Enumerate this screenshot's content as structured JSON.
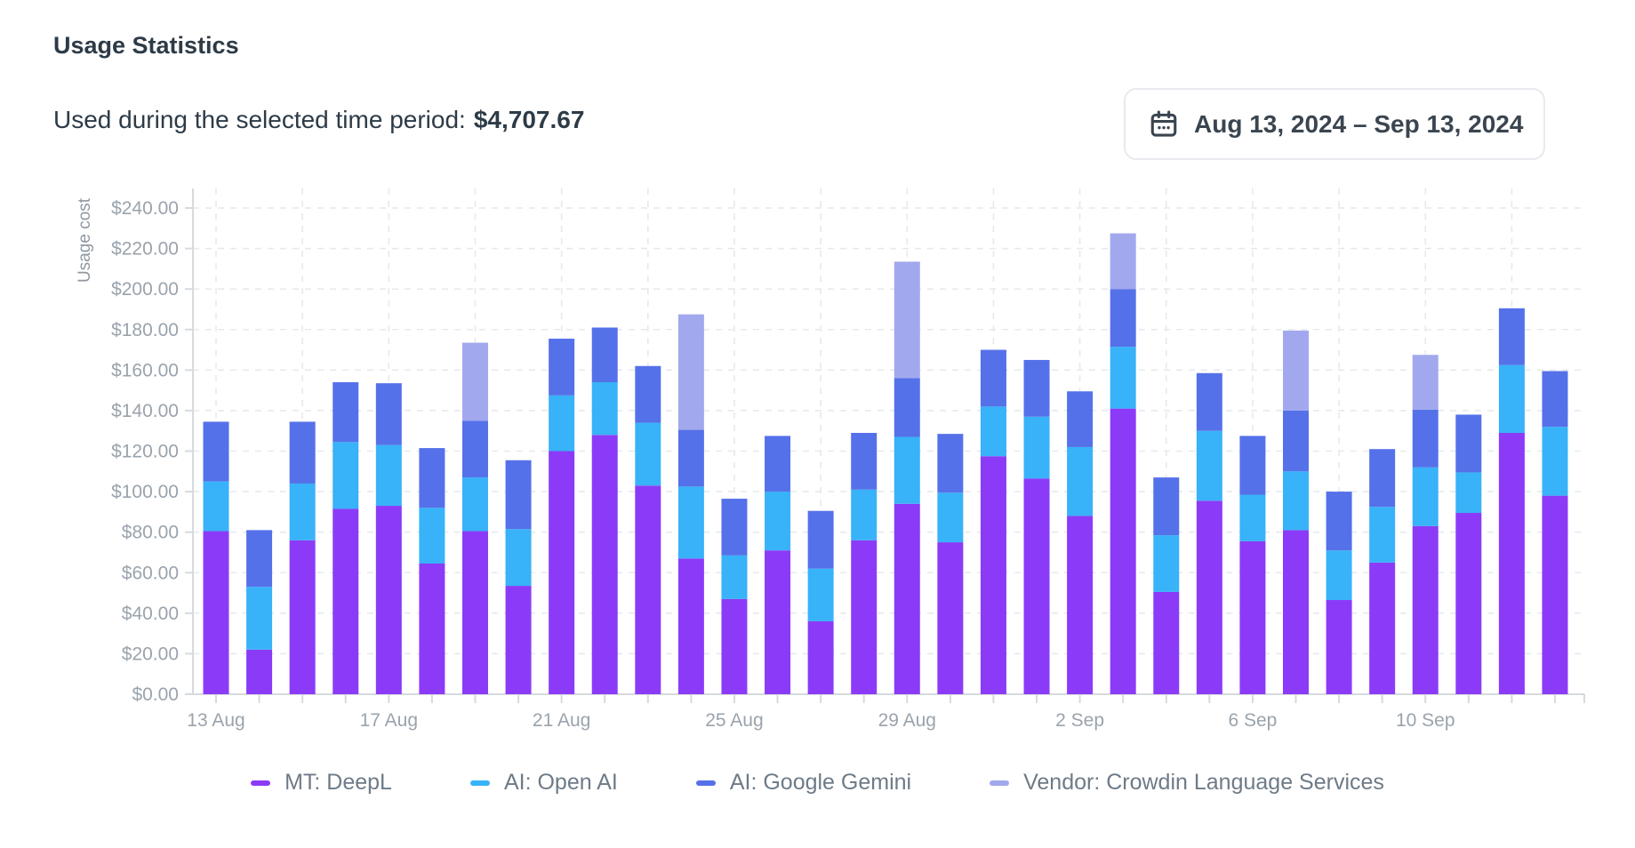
{
  "header": {
    "title": "Usage Statistics",
    "subtitle_label": "Used during the selected time period:",
    "subtitle_value": "$4,707.67"
  },
  "date_picker": {
    "icon": "calendar-icon",
    "label": "Aug 13, 2024 – Sep 13, 2024"
  },
  "chart_data": {
    "type": "bar",
    "stacked": true,
    "title": "",
    "xlabel": "",
    "ylabel": "Usage cost",
    "ylim": [
      0,
      250
    ],
    "y_tick_step": 20,
    "y_tick_labels": [
      "$0.00",
      "$20.00",
      "$40.00",
      "$60.00",
      "$80.00",
      "$100.00",
      "$120.00",
      "$140.00",
      "$160.00",
      "$180.00",
      "$200.00",
      "$220.00",
      "$240.00"
    ],
    "x_tick_labels_shown": [
      "13 Aug",
      "17 Aug",
      "21 Aug",
      "25 Aug",
      "29 Aug",
      "2 Sep",
      "6 Sep",
      "10 Sep"
    ],
    "grid": "dashed",
    "legend_position": "bottom",
    "categories": [
      "13 Aug",
      "14 Aug",
      "15 Aug",
      "16 Aug",
      "17 Aug",
      "18 Aug",
      "19 Aug",
      "20 Aug",
      "21 Aug",
      "22 Aug",
      "23 Aug",
      "24 Aug",
      "25 Aug",
      "26 Aug",
      "27 Aug",
      "28 Aug",
      "29 Aug",
      "30 Aug",
      "31 Aug",
      "1 Sep",
      "2 Sep",
      "3 Sep",
      "4 Sep",
      "5 Sep",
      "6 Sep",
      "7 Sep",
      "8 Sep",
      "9 Sep",
      "10 Sep",
      "11 Sep",
      "12 Sep",
      "13 Sep"
    ],
    "series": [
      {
        "name": "MT: DeepL",
        "color": "#8b3bf7",
        "values": [
          80.5,
          22,
          76,
          91.5,
          93,
          64.5,
          80.5,
          53.5,
          120,
          128,
          103,
          67,
          47,
          71,
          36,
          76,
          94,
          75,
          117.5,
          106.5,
          88,
          141,
          50.5,
          95.5,
          75.5,
          81,
          46.5,
          65,
          83,
          89.5,
          129,
          98
        ]
      },
      {
        "name": "AI: Open AI",
        "color": "#38b2f8",
        "values": [
          24.5,
          31,
          28,
          33,
          30,
          27.5,
          26.5,
          28,
          27.5,
          26,
          31,
          35.5,
          21.5,
          29,
          26,
          25,
          33,
          24.5,
          24.5,
          30.5,
          34,
          30.5,
          28,
          34.5,
          23,
          29,
          24.5,
          27.5,
          29,
          20,
          33.5,
          34
        ]
      },
      {
        "name": "AI: Google Gemini",
        "color": "#5571e9",
        "values": [
          29.5,
          28,
          30.5,
          29.5,
          30.5,
          29.5,
          28,
          34,
          28,
          27,
          28,
          28,
          28,
          27.5,
          28.5,
          28,
          29,
          29,
          28,
          28,
          27.5,
          28.5,
          28.5,
          28.5,
          29,
          30,
          29,
          28.5,
          28.5,
          28.5,
          28,
          27.5
        ]
      },
      {
        "name": "Vendor: Crowdin Language Services",
        "color": "#a1a8ed",
        "values": [
          0,
          0,
          0,
          0,
          0,
          0,
          38.5,
          0,
          0,
          0,
          0,
          57,
          0,
          0,
          0,
          0,
          57.5,
          0,
          0,
          0,
          0,
          27.5,
          0,
          0,
          0,
          39.5,
          0,
          0,
          27,
          0,
          0,
          0
        ]
      }
    ]
  }
}
